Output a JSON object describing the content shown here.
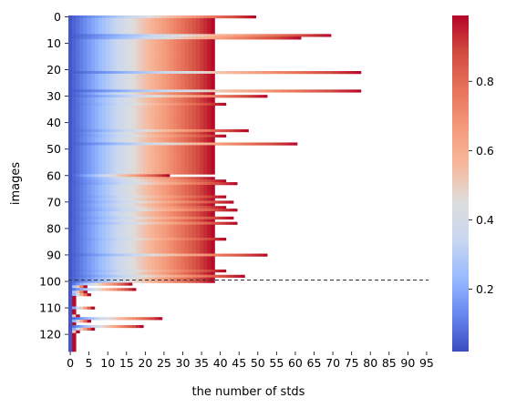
{
  "chart_data": {
    "type": "heatmap",
    "title": "",
    "xlabel": "the number of stds",
    "ylabel": "images",
    "colormap": "coolwarm",
    "colormap_stops": [
      "#3b4cc0",
      "#6788ee",
      "#9abbff",
      "#c9d7f0",
      "#dddddd",
      "#f7b89c",
      "#f49a7b",
      "#e7745b",
      "#d24b40",
      "#b40426"
    ],
    "x_range": [
      0,
      96
    ],
    "y_range": [
      0,
      127
    ],
    "x_ticks": [
      "0",
      "5",
      "10",
      "15",
      "20",
      "25",
      "30",
      "35",
      "40",
      "45",
      "50",
      "55",
      "60",
      "65",
      "70",
      "75",
      "80",
      "85",
      "90",
      "95"
    ],
    "x_tick_values": [
      0,
      5,
      10,
      15,
      20,
      25,
      30,
      35,
      40,
      45,
      50,
      55,
      60,
      65,
      70,
      75,
      80,
      85,
      90,
      95
    ],
    "y_ticks": [
      "0",
      "10",
      "20",
      "30",
      "40",
      "50",
      "60",
      "70",
      "80",
      "90",
      "100",
      "110",
      "120"
    ],
    "y_tick_values": [
      0,
      10,
      20,
      30,
      40,
      50,
      60,
      70,
      80,
      90,
      100,
      110,
      120
    ],
    "colorbar_range": [
      0.02,
      0.99
    ],
    "colorbar_ticks": [
      "0.2",
      "0.4",
      "0.6",
      "0.8"
    ],
    "colorbar_tick_values": [
      0.2,
      0.4,
      0.6,
      0.8
    ],
    "threshold_line_y": 100,
    "row_lengths": [
      50,
      39,
      39,
      39,
      39,
      39,
      39,
      70,
      62,
      39,
      39,
      39,
      39,
      39,
      39,
      39,
      39,
      39,
      39,
      39,
      39,
      78,
      39,
      39,
      39,
      39,
      39,
      39,
      78,
      39,
      53,
      39,
      39,
      42,
      39,
      39,
      39,
      39,
      39,
      39,
      39,
      39,
      39,
      48,
      39,
      42,
      39,
      39,
      61,
      39,
      39,
      39,
      39,
      39,
      39,
      39,
      39,
      39,
      39,
      39,
      27,
      39,
      42,
      45,
      39,
      39,
      39,
      39,
      42,
      39,
      44,
      39,
      42,
      45,
      39,
      39,
      44,
      39,
      45,
      39,
      39,
      39,
      39,
      39,
      42,
      39,
      39,
      39,
      39,
      39,
      53,
      39,
      39,
      39,
      39,
      39,
      42,
      39,
      47,
      39,
      39,
      17,
      5,
      18,
      5,
      6,
      2,
      2,
      2,
      2,
      7,
      2,
      2,
      3,
      25,
      6,
      2,
      20,
      7,
      3,
      2,
      2,
      2,
      2,
      2,
      2,
      2
    ]
  }
}
